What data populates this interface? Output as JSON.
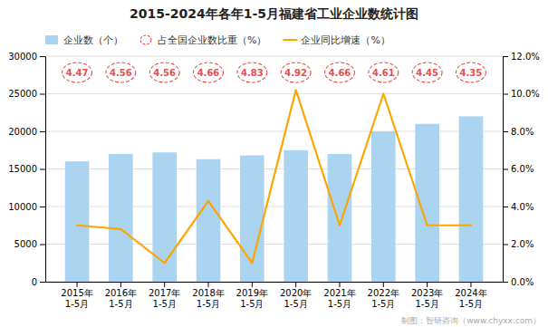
{
  "chart_data": {
    "type": "bar",
    "title": "2015-2024年各年1-5月福建省工业企业数统计图",
    "categories": [
      "2015年\n1-5月",
      "2016年\n1-5月",
      "2017年\n1-5月",
      "2018年\n1-5月",
      "2019年\n1-5月",
      "2020年\n1-5月",
      "2021年\n1-5月",
      "2022年\n1-5月",
      "2023年\n1-5月",
      "2024年\n1-5月"
    ],
    "series": [
      {
        "name": "企业数（个）",
        "type": "bar",
        "color": "#aad4f0",
        "values": [
          16000,
          17000,
          17200,
          16300,
          16800,
          17500,
          17000,
          20000,
          21000,
          22000
        ]
      },
      {
        "name": "占全国企业数比重（%）",
        "type": "text",
        "color": "#e84c4c",
        "marker": "ellipse",
        "line_style": "dashed",
        "values": [
          4.47,
          4.56,
          4.56,
          4.66,
          4.83,
          4.92,
          4.66,
          4.61,
          4.45,
          4.35
        ]
      },
      {
        "name": "企业同比增速（%）",
        "type": "line",
        "color": "#FFA500",
        "axis": "y2",
        "values": [
          0.03,
          0.028,
          0.01,
          0.043,
          0.01,
          0.102,
          0.03,
          0.1,
          0.03,
          0.03
        ]
      }
    ],
    "ylim": [
      0,
      30000
    ],
    "yticks": [
      0,
      5000,
      10000,
      15000,
      20000,
      25000,
      30000
    ],
    "y2lim": [
      0,
      0.12
    ],
    "y2ticks": [
      {
        "value": 0,
        "label": "0.0%"
      },
      {
        "value": 0.02,
        "label": "2.0%"
      },
      {
        "value": 0.04,
        "label": "4.0%"
      },
      {
        "value": 0.06,
        "label": "6.0%"
      },
      {
        "value": 0.08,
        "label": "8.0%"
      },
      {
        "value": 0.1,
        "label": "10.0%"
      },
      {
        "value": 0.12,
        "label": "12.0%"
      }
    ],
    "grid": true,
    "legend": "top left",
    "annotations": [
      "制图：智研咨询（www.chyxx.com）"
    ]
  }
}
